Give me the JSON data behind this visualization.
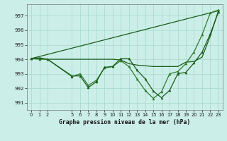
{
  "bg_color": "#cceee8",
  "grid_color": "#aaddcc",
  "line_color_dark": "#1a5c1a",
  "line_color_med": "#2d7a2d",
  "title": "Graphe pression niveau de la mer (hPa)",
  "xlim": [
    -0.5,
    23.5
  ],
  "ylim": [
    990.5,
    997.8
  ],
  "yticks": [
    991,
    992,
    993,
    994,
    995,
    996,
    997
  ],
  "xtick_positions": [
    0,
    1,
    2,
    5,
    6,
    7,
    8,
    9,
    10,
    11,
    12,
    13,
    14,
    15,
    16,
    17,
    18,
    19,
    20,
    21,
    22,
    23
  ],
  "xtick_labels": [
    "0",
    "1",
    "2",
    "5",
    "6",
    "7",
    "8",
    "9",
    "10",
    "11",
    "12",
    "13",
    "14",
    "15",
    "16",
    "17",
    "18",
    "19",
    "20",
    "21",
    "22",
    "23"
  ],
  "series_trend_x": [
    0,
    23
  ],
  "series_trend_y": [
    994.05,
    997.35
  ],
  "series_smooth_x": [
    0,
    1,
    2,
    10,
    11,
    12,
    13,
    14,
    15,
    16,
    17,
    18,
    19,
    20,
    21,
    22,
    23
  ],
  "series_smooth_y": [
    994.05,
    994.05,
    994.0,
    994.0,
    993.95,
    993.7,
    993.6,
    993.55,
    993.5,
    993.5,
    993.5,
    993.5,
    993.8,
    993.85,
    994.15,
    995.6,
    997.35
  ],
  "series_zigzag_x": [
    0,
    1,
    2,
    5,
    6,
    7,
    8,
    9,
    10,
    11,
    12,
    13,
    14,
    15,
    16,
    17,
    18,
    19,
    20,
    21,
    22,
    23
  ],
  "series_zigzag_y": [
    994.05,
    994.1,
    994.0,
    992.85,
    992.85,
    992.05,
    992.45,
    993.45,
    993.5,
    994.05,
    994.05,
    993.25,
    992.65,
    991.8,
    991.35,
    991.85,
    993.0,
    993.1,
    993.75,
    994.5,
    995.75,
    997.25
  ],
  "series_zigzag2_x": [
    0,
    1,
    2,
    5,
    6,
    7,
    8,
    9,
    10,
    11,
    12,
    13,
    14,
    15,
    16,
    17,
    18,
    19,
    20,
    21,
    22,
    23
  ],
  "series_zigzag2_y": [
    994.05,
    994.0,
    994.0,
    992.8,
    993.0,
    992.2,
    992.55,
    993.4,
    993.5,
    993.9,
    993.5,
    992.65,
    991.85,
    991.3,
    991.75,
    993.0,
    993.15,
    993.7,
    994.5,
    995.7,
    997.2,
    997.4
  ]
}
